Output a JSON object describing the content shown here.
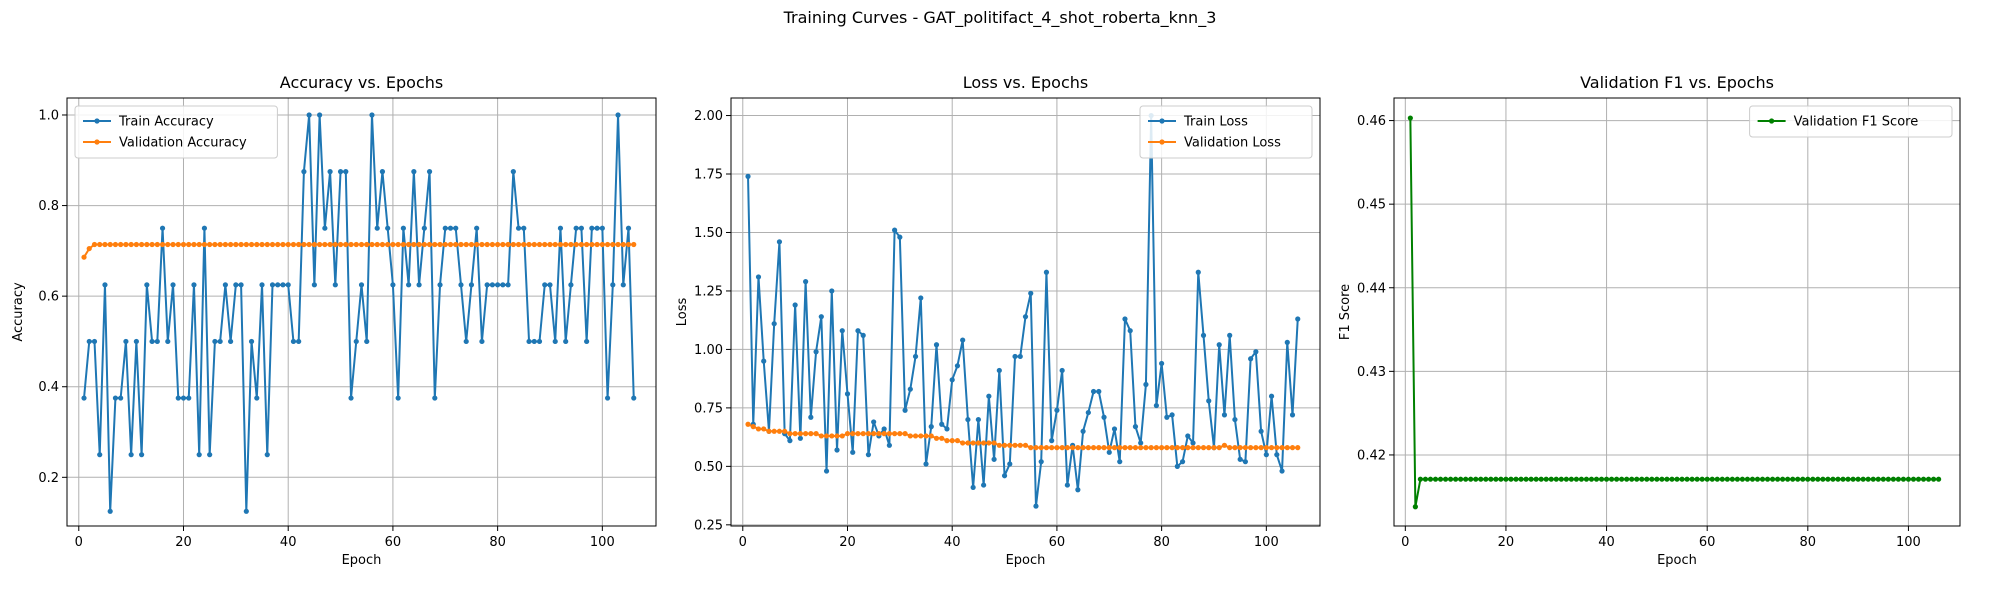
{
  "figure": {
    "suptitle": "Training Curves - GAT_politifact_4_shot_roberta_knn_3"
  },
  "colors": {
    "blue": "#1f77b4",
    "orange": "#ff7f0e",
    "green": "#008000",
    "grid": "#b0b0b0"
  },
  "chart_data": [
    {
      "type": "line",
      "title": "Accuracy vs. Epochs",
      "xlabel": "Epoch",
      "ylabel": "Accuracy",
      "xlim": [
        -2.25,
        110.25
      ],
      "ylim": [
        0.0925,
        1.0375
      ],
      "xticks": [
        0,
        20,
        40,
        60,
        80,
        100
      ],
      "yticks": [
        0.2,
        0.4,
        0.6,
        0.8,
        1.0
      ],
      "ytick_labels": [
        "0.2",
        "0.4",
        "0.6",
        "0.8",
        "1.0"
      ],
      "grid": true,
      "legend_loc": "upper left",
      "series": [
        {
          "name": "Train Accuracy",
          "color": "#1f77b4",
          "x_start": 1,
          "values": [
            0.375,
            0.5,
            0.5,
            0.25,
            0.625,
            0.125,
            0.375,
            0.375,
            0.5,
            0.25,
            0.5,
            0.25,
            0.625,
            0.5,
            0.5,
            0.75,
            0.5,
            0.625,
            0.375,
            0.375,
            0.375,
            0.625,
            0.25,
            0.75,
            0.25,
            0.5,
            0.5,
            0.625,
            0.5,
            0.625,
            0.625,
            0.125,
            0.5,
            0.375,
            0.625,
            0.25,
            0.625,
            0.625,
            0.625,
            0.625,
            0.5,
            0.5,
            0.875,
            1.0,
            0.625,
            1.0,
            0.75,
            0.875,
            0.625,
            0.875,
            0.875,
            0.375,
            0.5,
            0.625,
            0.5,
            1.0,
            0.75,
            0.875,
            0.75,
            0.625,
            0.375,
            0.75,
            0.625,
            0.875,
            0.625,
            0.75,
            0.875,
            0.375,
            0.625,
            0.75,
            0.75,
            0.75,
            0.625,
            0.5,
            0.625,
            0.75,
            0.5,
            0.625,
            0.625,
            0.625,
            0.625,
            0.625,
            0.875,
            0.75,
            0.75,
            0.5,
            0.5,
            0.5,
            0.625,
            0.625,
            0.5,
            0.75,
            0.5,
            0.625,
            0.75,
            0.75,
            0.5,
            0.75,
            0.75,
            0.75,
            0.375,
            0.625,
            1.0,
            0.625,
            0.75,
            0.375
          ]
        },
        {
          "name": "Validation Accuracy",
          "color": "#ff7f0e",
          "x_start": 1,
          "values": [
            0.686,
            0.705,
            0.714,
            0.714,
            0.714,
            0.714,
            0.714,
            0.714,
            0.714,
            0.714,
            0.714,
            0.714,
            0.714,
            0.714,
            0.714,
            0.714,
            0.714,
            0.714,
            0.714,
            0.714,
            0.714,
            0.714,
            0.714,
            0.714,
            0.714,
            0.714,
            0.714,
            0.714,
            0.714,
            0.714,
            0.714,
            0.714,
            0.714,
            0.714,
            0.714,
            0.714,
            0.714,
            0.714,
            0.714,
            0.714,
            0.714,
            0.714,
            0.714,
            0.714,
            0.714,
            0.714,
            0.714,
            0.714,
            0.714,
            0.714,
            0.714,
            0.714,
            0.714,
            0.714,
            0.714,
            0.714,
            0.714,
            0.714,
            0.714,
            0.714,
            0.714,
            0.714,
            0.714,
            0.714,
            0.714,
            0.714,
            0.714,
            0.714,
            0.714,
            0.714,
            0.714,
            0.714,
            0.714,
            0.714,
            0.714,
            0.714,
            0.714,
            0.714,
            0.714,
            0.714,
            0.714,
            0.714,
            0.714,
            0.714,
            0.714,
            0.714,
            0.714,
            0.714,
            0.714,
            0.714,
            0.714,
            0.714,
            0.714,
            0.714,
            0.714,
            0.714,
            0.714,
            0.714,
            0.714,
            0.714,
            0.714,
            0.714,
            0.714,
            0.714,
            0.714,
            0.714
          ]
        }
      ]
    },
    {
      "type": "line",
      "title": "Loss vs. Epochs",
      "xlabel": "Epoch",
      "ylabel": "Loss",
      "xlim": [
        -2.25,
        110.25
      ],
      "ylim": [
        0.245,
        2.075
      ],
      "xticks": [
        0,
        20,
        40,
        60,
        80,
        100
      ],
      "yticks": [
        0.25,
        0.5,
        0.75,
        1.0,
        1.25,
        1.5,
        1.75,
        2.0
      ],
      "ytick_labels": [
        "0.25",
        "0.50",
        "0.75",
        "1.00",
        "1.25",
        "1.50",
        "1.75",
        "2.00"
      ],
      "grid": true,
      "legend_loc": "upper right",
      "series": [
        {
          "name": "Train Loss",
          "color": "#1f77b4",
          "x_start": 1,
          "values": [
            1.74,
            0.68,
            1.31,
            0.95,
            0.65,
            1.11,
            1.46,
            0.64,
            0.61,
            1.19,
            0.62,
            1.29,
            0.71,
            0.99,
            1.14,
            0.48,
            1.25,
            0.57,
            1.08,
            0.81,
            0.56,
            1.08,
            1.06,
            0.55,
            0.69,
            0.63,
            0.66,
            0.59,
            1.51,
            1.48,
            0.74,
            0.83,
            0.97,
            1.22,
            0.51,
            0.67,
            1.02,
            0.68,
            0.66,
            0.87,
            0.93,
            1.04,
            0.7,
            0.41,
            0.7,
            0.42,
            0.8,
            0.53,
            0.91,
            0.46,
            0.51,
            0.97,
            0.97,
            1.14,
            1.24,
            0.33,
            0.52,
            1.33,
            0.61,
            0.74,
            0.91,
            0.42,
            0.59,
            0.4,
            0.65,
            0.73,
            0.82,
            0.82,
            0.71,
            0.56,
            0.66,
            0.52,
            1.13,
            1.08,
            0.67,
            0.6,
            0.85,
            2.0,
            0.76,
            0.94,
            0.71,
            0.72,
            0.5,
            0.52,
            0.63,
            0.6,
            1.33,
            1.06,
            0.78,
            0.58,
            1.02,
            0.72,
            1.06,
            0.7,
            0.53,
            0.52,
            0.96,
            0.99,
            0.65,
            0.55,
            0.8,
            0.55,
            0.48,
            1.03,
            0.72,
            1.13
          ]
        },
        {
          "name": "Validation Loss",
          "color": "#ff7f0e",
          "x_start": 1,
          "values": [
            0.68,
            0.67,
            0.66,
            0.66,
            0.65,
            0.65,
            0.65,
            0.65,
            0.64,
            0.64,
            0.64,
            0.64,
            0.64,
            0.64,
            0.63,
            0.63,
            0.63,
            0.63,
            0.63,
            0.64,
            0.64,
            0.64,
            0.64,
            0.64,
            0.64,
            0.64,
            0.64,
            0.64,
            0.64,
            0.64,
            0.64,
            0.63,
            0.63,
            0.63,
            0.63,
            0.63,
            0.62,
            0.62,
            0.61,
            0.61,
            0.61,
            0.6,
            0.6,
            0.6,
            0.6,
            0.6,
            0.6,
            0.6,
            0.59,
            0.59,
            0.59,
            0.59,
            0.59,
            0.59,
            0.58,
            0.58,
            0.58,
            0.58,
            0.58,
            0.58,
            0.58,
            0.58,
            0.58,
            0.58,
            0.58,
            0.58,
            0.58,
            0.58,
            0.58,
            0.58,
            0.58,
            0.58,
            0.58,
            0.58,
            0.58,
            0.58,
            0.58,
            0.58,
            0.58,
            0.58,
            0.58,
            0.58,
            0.58,
            0.58,
            0.58,
            0.58,
            0.58,
            0.58,
            0.58,
            0.58,
            0.58,
            0.59,
            0.58,
            0.58,
            0.58,
            0.58,
            0.58,
            0.58,
            0.58,
            0.58,
            0.58,
            0.58,
            0.58,
            0.58,
            0.58,
            0.58
          ]
        }
      ]
    },
    {
      "type": "line",
      "title": "Validation F1 vs. Epochs",
      "xlabel": "Epoch",
      "ylabel": "F1 Score",
      "xlim": [
        -2.25,
        110.25
      ],
      "ylim": [
        0.4115,
        0.4627
      ],
      "xticks": [
        0,
        20,
        40,
        60,
        80,
        100
      ],
      "yticks": [
        0.42,
        0.43,
        0.44,
        0.45,
        0.46
      ],
      "ytick_labels": [
        "0.42",
        "0.43",
        "0.44",
        "0.45",
        "0.46"
      ],
      "grid": true,
      "legend_loc": "upper right",
      "series": [
        {
          "name": "Validation F1 Score",
          "color": "#008000",
          "x_start": 1,
          "values": [
            0.4603,
            0.4138,
            0.4171,
            0.4171,
            0.4171,
            0.4171,
            0.4171,
            0.4171,
            0.4171,
            0.4171,
            0.4171,
            0.4171,
            0.4171,
            0.4171,
            0.4171,
            0.4171,
            0.4171,
            0.4171,
            0.4171,
            0.4171,
            0.4171,
            0.4171,
            0.4171,
            0.4171,
            0.4171,
            0.4171,
            0.4171,
            0.4171,
            0.4171,
            0.4171,
            0.4171,
            0.4171,
            0.4171,
            0.4171,
            0.4171,
            0.4171,
            0.4171,
            0.4171,
            0.4171,
            0.4171,
            0.4171,
            0.4171,
            0.4171,
            0.4171,
            0.4171,
            0.4171,
            0.4171,
            0.4171,
            0.4171,
            0.4171,
            0.4171,
            0.4171,
            0.4171,
            0.4171,
            0.4171,
            0.4171,
            0.4171,
            0.4171,
            0.4171,
            0.4171,
            0.4171,
            0.4171,
            0.4171,
            0.4171,
            0.4171,
            0.4171,
            0.4171,
            0.4171,
            0.4171,
            0.4171,
            0.4171,
            0.4171,
            0.4171,
            0.4171,
            0.4171,
            0.4171,
            0.4171,
            0.4171,
            0.4171,
            0.4171,
            0.4171,
            0.4171,
            0.4171,
            0.4171,
            0.4171,
            0.4171,
            0.4171,
            0.4171,
            0.4171,
            0.4171,
            0.4171,
            0.4171,
            0.4171,
            0.4171,
            0.4171,
            0.4171,
            0.4171,
            0.4171,
            0.4171,
            0.4171,
            0.4171,
            0.4171,
            0.4171,
            0.4171,
            0.4171,
            0.4171
          ]
        }
      ]
    }
  ]
}
